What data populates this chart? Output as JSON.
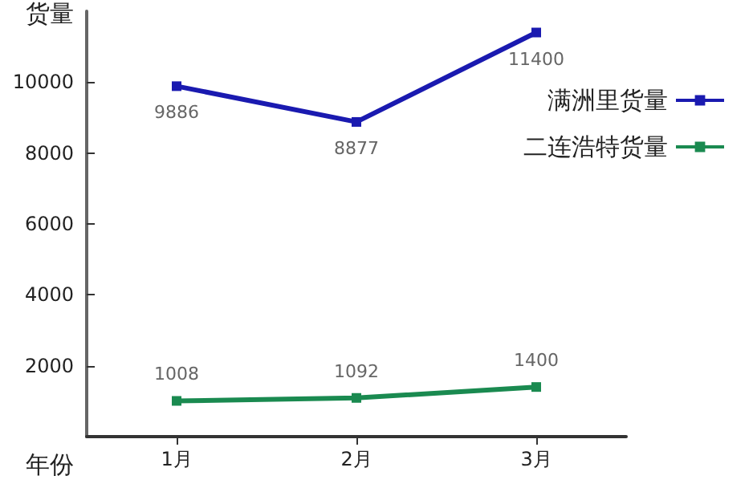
{
  "chart_data": {
    "type": "line",
    "xlabel": "年份",
    "ylabel": "货量",
    "categories": [
      "1月",
      "2月",
      "3月"
    ],
    "series": [
      {
        "name": "满洲里货量",
        "color": "#1a1ab0",
        "values": [
          9886,
          8877,
          11400
        ]
      },
      {
        "name": "二连浩特货量",
        "color": "#1a8a50",
        "values": [
          1008,
          1092,
          1400
        ]
      }
    ],
    "ylim": [
      0,
      12000
    ],
    "yticks": [
      2000,
      4000,
      6000,
      8000,
      10000
    ],
    "grid": false,
    "legend": "right",
    "marker": "square",
    "line_style": "solid",
    "data_labels": true
  }
}
